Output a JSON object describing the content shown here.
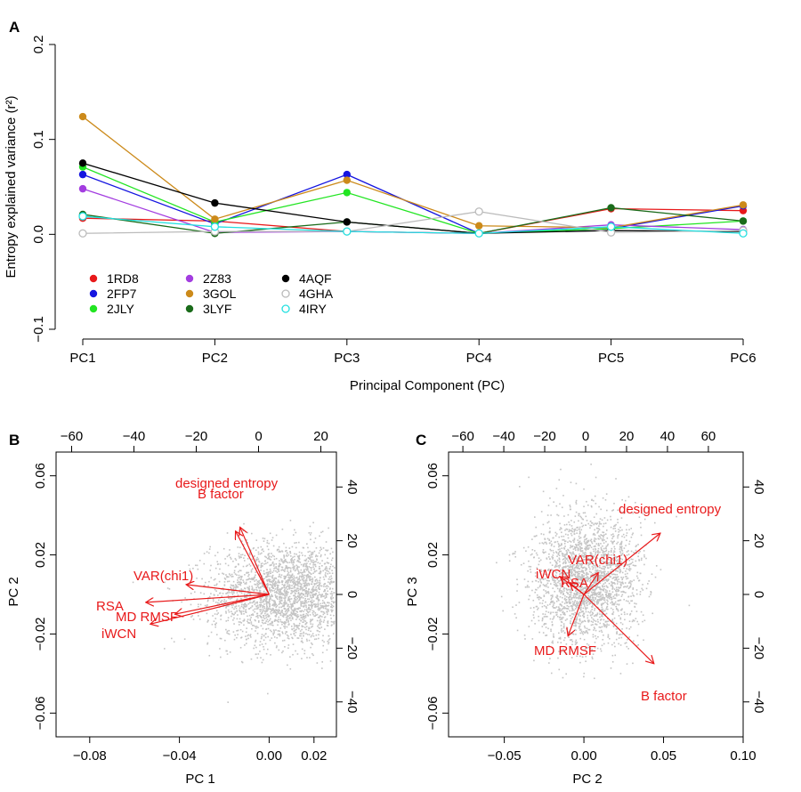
{
  "chart_data": [
    {
      "panel": "A",
      "type": "line",
      "xlabel": "Principal Component (PC)",
      "ylabel": "Entropy explained variance (r²)",
      "categories": [
        "PC1",
        "PC2",
        "PC3",
        "PC4",
        "PC5",
        "PC6"
      ],
      "ylim": [
        -0.1,
        0.2
      ],
      "yticks": [
        -0.1,
        0.0,
        0.1,
        0.2
      ],
      "ytick_labels": [
        "−0.1",
        "0.0",
        "0.1",
        "0.2"
      ],
      "legend_placement": "bottom-left",
      "series": [
        {
          "name": "1RD8",
          "color": "#e8191a",
          "values": [
            0.017,
            0.014,
            0.003,
            0.001,
            0.027,
            0.025
          ]
        },
        {
          "name": "2FP7",
          "color": "#1515e0",
          "values": [
            0.063,
            0.011,
            0.063,
            0.001,
            0.006,
            0.03
          ]
        },
        {
          "name": "2JLY",
          "color": "#22e522",
          "values": [
            0.071,
            0.013,
            0.044,
            0.001,
            0.006,
            0.014
          ]
        },
        {
          "name": "2Z83",
          "color": "#a33de0",
          "values": [
            0.048,
            0.002,
            0.003,
            0.001,
            0.01,
            0.005
          ]
        },
        {
          "name": "3GOL",
          "color": "#cc8a1a",
          "values": [
            0.124,
            0.016,
            0.057,
            0.009,
            0.007,
            0.031
          ]
        },
        {
          "name": "3LYF",
          "color": "#1a6b1a",
          "values": [
            0.021,
            0.001,
            0.013,
            0.001,
            0.028,
            0.014
          ]
        },
        {
          "name": "4AQF",
          "color": "#000000",
          "values": [
            0.075,
            0.033,
            0.013,
            0.001,
            0.004,
            0.003
          ]
        },
        {
          "name": "4GHA",
          "color": "#bbbbbb",
          "values": [
            0.001,
            0.003,
            0.003,
            0.024,
            0.002,
            0.004
          ],
          "hollow": true
        },
        {
          "name": "4IRY",
          "color": "#22e0e0",
          "values": [
            0.019,
            0.008,
            0.003,
            0.001,
            0.008,
            0.001
          ],
          "hollow": true
        }
      ]
    },
    {
      "panel": "B",
      "type": "scatter",
      "xlabel": "PC 1",
      "ylabel": "PC 2",
      "xlim": [
        -0.095,
        0.03
      ],
      "ylim": [
        -0.072,
        0.072
      ],
      "xticks": [
        -0.08,
        -0.04,
        0.0,
        0.02
      ],
      "xtick_labels": [
        "−0.08",
        "−0.04",
        "0.00",
        "0.02"
      ],
      "yticks": [
        -0.06,
        -0.02,
        0.02,
        0.06
      ],
      "ytick_labels": [
        "−0.06",
        "−0.02",
        "0.02",
        "0.06"
      ],
      "top_axis": {
        "lim": [
          -65,
          25
        ],
        "ticks": [
          -60,
          -40,
          -20,
          0,
          20
        ],
        "tick_labels": [
          "−60",
          "−40",
          "−20",
          "0",
          "20"
        ]
      },
      "right_axis": {
        "lim": [
          -53,
          53
        ],
        "ticks": [
          -40,
          -20,
          0,
          20,
          40
        ],
        "tick_labels": [
          "−40",
          "−20",
          "0",
          "20",
          "40"
        ]
      },
      "cloud": {
        "cx": 0.008,
        "cy": 0.0,
        "sx": 0.017,
        "sy": 0.013,
        "n": 2600
      },
      "arrows": [
        {
          "label": "designed entropy",
          "x": -0.013,
          "y": 0.034
        },
        {
          "label": "B factor",
          "x": -0.015,
          "y": 0.032
        },
        {
          "label": "VAR(chi1)",
          "x": -0.037,
          "y": 0.005
        },
        {
          "label": "RSA",
          "x": -0.055,
          "y": -0.004
        },
        {
          "label": "MD RMSF",
          "x": -0.042,
          "y": -0.01
        },
        {
          "label": "iWCN",
          "x": -0.053,
          "y": -0.015
        }
      ]
    },
    {
      "panel": "C",
      "type": "scatter",
      "xlabel": "PC 2",
      "ylabel": "PC 3",
      "xlim": [
        -0.085,
        0.1
      ],
      "ylim": [
        -0.072,
        0.072
      ],
      "xticks": [
        -0.05,
        0.0,
        0.05,
        0.1
      ],
      "xtick_labels": [
        "−0.05",
        "0.00",
        "0.05",
        "0.10"
      ],
      "yticks": [
        -0.06,
        -0.02,
        0.02,
        0.06
      ],
      "ytick_labels": [
        "−0.06",
        "−0.02",
        "0.02",
        "0.06"
      ],
      "top_axis": {
        "lim": [
          -67,
          77
        ],
        "ticks": [
          -60,
          -40,
          -20,
          0,
          20,
          40,
          60
        ],
        "tick_labels": [
          "−60",
          "−40",
          "−20",
          "0",
          "20",
          "40",
          "60"
        ]
      },
      "right_axis": {
        "lim": [
          -53,
          53
        ],
        "ticks": [
          -40,
          -20,
          0,
          20,
          40
        ],
        "tick_labels": [
          "−40",
          "−20",
          "0",
          "20",
          "40"
        ]
      },
      "cloud": {
        "cx": 0.002,
        "cy": 0.008,
        "sx": 0.017,
        "sy": 0.017,
        "n": 2400
      },
      "arrows": [
        {
          "label": "designed entropy",
          "x": 0.048,
          "y": 0.031
        },
        {
          "label": "B factor",
          "x": 0.044,
          "y": -0.035
        },
        {
          "label": "VAR(chi1)",
          "x": 0.009,
          "y": 0.011
        },
        {
          "label": "RSA",
          "x": -0.009,
          "y": 0.006
        },
        {
          "label": "MD RMSF",
          "x": -0.01,
          "y": -0.021
        },
        {
          "label": "iWCN",
          "x": -0.015,
          "y": 0.009
        }
      ]
    }
  ]
}
